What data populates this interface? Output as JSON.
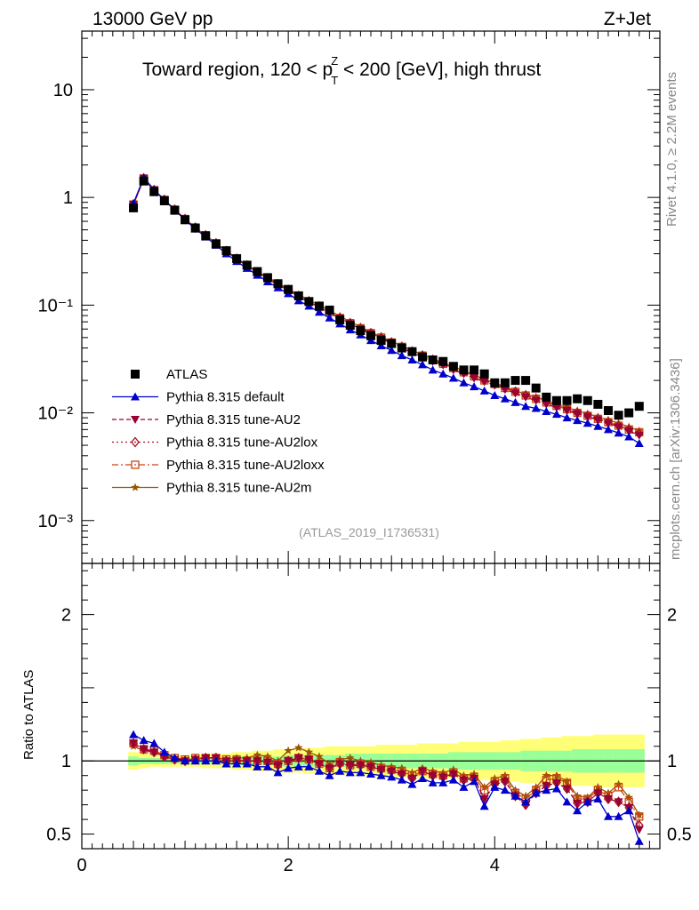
{
  "header": {
    "left": "13000 GeV pp",
    "right": "Z+Jet"
  },
  "title": {
    "prefix": "Toward region, 120 < p",
    "sup": "Z",
    "sub": "T",
    "suffix": " < 200 [GeV], high thrust"
  },
  "side_labels": {
    "rivet": "Rivet 4.1.0, ≥ 2.2M events",
    "mcplots": "mcplots.cern.ch [arXiv:1306.3436]"
  },
  "analysis_tag": "(ATLAS_2019_I1736531)",
  "ratio_ylabel": "Ratio to ATLAS",
  "colors": {
    "ATLAS": "#000000",
    "default": "#0000cc",
    "AU2": "#990033",
    "AU2lox": "#aa1122",
    "AU2loxx": "#cc4411",
    "AU2m": "#995500",
    "band_outer": "#ffff77",
    "band_inner": "#99ff99"
  },
  "chart_data": {
    "type": "line",
    "x": [
      0.5,
      0.6,
      0.7,
      0.8,
      0.9,
      1.0,
      1.1,
      1.2,
      1.3,
      1.4,
      1.5,
      1.6,
      1.7,
      1.8,
      1.9,
      2.0,
      2.1,
      2.2,
      2.3,
      2.4,
      2.5,
      2.6,
      2.7,
      2.8,
      2.9,
      3.0,
      3.1,
      3.2,
      3.3,
      3.4,
      3.5,
      3.6,
      3.7,
      3.8,
      3.9,
      4.0,
      4.1,
      4.2,
      4.3,
      4.4,
      4.5,
      4.6,
      4.7,
      4.8,
      4.9,
      5.0,
      5.1,
      5.2,
      5.3,
      5.4
    ],
    "main_panel": {
      "yscale": "log",
      "ylim": [
        0.0004,
        35
      ],
      "yticks": [
        {
          "value": 10,
          "label": "10"
        },
        {
          "value": 1,
          "label": "1"
        },
        {
          "value": 0.1,
          "label": "10⁻¹"
        },
        {
          "value": 0.01,
          "label": "10⁻²"
        },
        {
          "value": 0.001,
          "label": "10⁻³"
        }
      ],
      "series": [
        {
          "name": "ATLAS",
          "key": "ATLAS",
          "marker": "square",
          "values": [
            0.8,
            1.42,
            1.13,
            0.93,
            0.76,
            0.62,
            0.52,
            0.44,
            0.37,
            0.32,
            0.27,
            0.235,
            0.205,
            0.18,
            0.158,
            0.14,
            0.122,
            0.108,
            0.098,
            0.09,
            0.073,
            0.065,
            0.058,
            0.052,
            0.047,
            0.044,
            0.04,
            0.037,
            0.033,
            0.031,
            0.03,
            0.027,
            0.025,
            0.025,
            0.023,
            0.019,
            0.019,
            0.02,
            0.02,
            0.017,
            0.014,
            0.013,
            0.013,
            0.0135,
            0.013,
            0.012,
            0.0105,
            0.0095,
            0.01,
            0.0115
          ]
        },
        {
          "name": "Pythia 8.315 default",
          "key": "default",
          "marker": "triangle-up",
          "line": "solid",
          "values": [
            0.88,
            1.53,
            1.18,
            0.95,
            0.76,
            0.62,
            0.51,
            0.43,
            0.36,
            0.3,
            0.255,
            0.22,
            0.19,
            0.165,
            0.145,
            0.128,
            0.11,
            0.098,
            0.086,
            0.076,
            0.067,
            0.059,
            0.053,
            0.047,
            0.042,
            0.038,
            0.034,
            0.031,
            0.028,
            0.025,
            0.023,
            0.021,
            0.019,
            0.0175,
            0.016,
            0.0145,
            0.0135,
            0.0125,
            0.0115,
            0.011,
            0.0103,
            0.0097,
            0.009,
            0.0085,
            0.008,
            0.0075,
            0.007,
            0.0065,
            0.006,
            0.0052
          ]
        },
        {
          "name": "Pythia 8.315 tune-AU2",
          "key": "AU2",
          "marker": "triangle-down",
          "line": "dashed",
          "values": [
            0.86,
            1.5,
            1.17,
            0.95,
            0.77,
            0.63,
            0.52,
            0.44,
            0.37,
            0.315,
            0.268,
            0.232,
            0.2,
            0.176,
            0.155,
            0.137,
            0.12,
            0.107,
            0.095,
            0.085,
            0.075,
            0.067,
            0.06,
            0.054,
            0.049,
            0.044,
            0.04,
            0.036,
            0.033,
            0.03,
            0.028,
            0.025,
            0.023,
            0.021,
            0.0195,
            0.018,
            0.0165,
            0.0152,
            0.014,
            0.013,
            0.012,
            0.0112,
            0.0105,
            0.0098,
            0.0092,
            0.0086,
            0.008,
            0.0074,
            0.0068,
            0.0062
          ]
        },
        {
          "name": "Pythia 8.315 tune-AU2lox",
          "key": "AU2lox",
          "marker": "diamond-open",
          "line": "dotted",
          "values": [
            0.86,
            1.5,
            1.17,
            0.95,
            0.77,
            0.63,
            0.525,
            0.445,
            0.375,
            0.318,
            0.27,
            0.234,
            0.202,
            0.178,
            0.156,
            0.138,
            0.121,
            0.108,
            0.096,
            0.086,
            0.076,
            0.068,
            0.061,
            0.055,
            0.05,
            0.045,
            0.041,
            0.037,
            0.034,
            0.031,
            0.0285,
            0.026,
            0.0238,
            0.0218,
            0.02,
            0.0185,
            0.017,
            0.0157,
            0.0145,
            0.0135,
            0.0125,
            0.0116,
            0.0108,
            0.01,
            0.0094,
            0.0088,
            0.0082,
            0.0076,
            0.007,
            0.0064
          ]
        },
        {
          "name": "Pythia 8.315 tune-AU2loxx",
          "key": "AU2loxx",
          "marker": "square-open",
          "line": "dashdot",
          "values": [
            0.86,
            1.5,
            1.17,
            0.95,
            0.77,
            0.63,
            0.525,
            0.445,
            0.375,
            0.318,
            0.27,
            0.234,
            0.202,
            0.178,
            0.156,
            0.138,
            0.121,
            0.108,
            0.096,
            0.086,
            0.076,
            0.068,
            0.061,
            0.055,
            0.05,
            0.045,
            0.041,
            0.037,
            0.034,
            0.031,
            0.0285,
            0.026,
            0.0238,
            0.0218,
            0.02,
            0.0185,
            0.017,
            0.0157,
            0.0145,
            0.0135,
            0.0125,
            0.0116,
            0.0108,
            0.01,
            0.0094,
            0.0088,
            0.0082,
            0.0076,
            0.007,
            0.0066
          ]
        },
        {
          "name": "Pythia 8.315 tune-AU2m",
          "key": "AU2m",
          "marker": "star",
          "line": "solid",
          "values": [
            0.85,
            1.48,
            1.16,
            0.95,
            0.77,
            0.63,
            0.525,
            0.445,
            0.375,
            0.32,
            0.272,
            0.236,
            0.205,
            0.182,
            0.16,
            0.142,
            0.125,
            0.112,
            0.1,
            0.089,
            0.079,
            0.07,
            0.063,
            0.056,
            0.051,
            0.046,
            0.042,
            0.038,
            0.035,
            0.032,
            0.029,
            0.027,
            0.0245,
            0.0225,
            0.0205,
            0.019,
            0.0175,
            0.016,
            0.015,
            0.014,
            0.013,
            0.012,
            0.0112,
            0.0105,
            0.0098,
            0.0092,
            0.0086,
            0.008,
            0.0074,
            0.0068
          ]
        }
      ]
    },
    "ratio_panel": {
      "yscale": "linear",
      "ylim": [
        0.4,
        2.35
      ],
      "yticks": [
        {
          "value": 0.5,
          "label": "0.5"
        },
        {
          "value": 1,
          "label": "1"
        },
        {
          "value": 2,
          "label": "2"
        }
      ],
      "band_outer": [
        0.06,
        0.05,
        0.04,
        0.04,
        0.04,
        0.04,
        0.04,
        0.05,
        0.05,
        0.05,
        0.06,
        0.06,
        0.07,
        0.07,
        0.08,
        0.08,
        0.08,
        0.09,
        0.09,
        0.1,
        0.1,
        0.1,
        0.1,
        0.1,
        0.11,
        0.11,
        0.11,
        0.11,
        0.12,
        0.12,
        0.12,
        0.12,
        0.13,
        0.13,
        0.13,
        0.13,
        0.14,
        0.14,
        0.15,
        0.15,
        0.16,
        0.16,
        0.17,
        0.17,
        0.17,
        0.18,
        0.18,
        0.18,
        0.18,
        0.18
      ],
      "band_inner": [
        0.03,
        0.02,
        0.02,
        0.02,
        0.02,
        0.02,
        0.02,
        0.02,
        0.02,
        0.02,
        0.03,
        0.03,
        0.03,
        0.03,
        0.03,
        0.04,
        0.04,
        0.04,
        0.04,
        0.04,
        0.04,
        0.05,
        0.05,
        0.05,
        0.05,
        0.05,
        0.05,
        0.05,
        0.05,
        0.05,
        0.05,
        0.06,
        0.06,
        0.06,
        0.06,
        0.06,
        0.06,
        0.06,
        0.07,
        0.07,
        0.07,
        0.07,
        0.07,
        0.08,
        0.08,
        0.08,
        0.08,
        0.08,
        0.08,
        0.08
      ],
      "series": [
        {
          "key": "default",
          "values": [
            1.18,
            1.14,
            1.12,
            1.06,
            1.02,
            1.0,
            1.0,
            1.0,
            1.0,
            0.98,
            0.98,
            0.98,
            0.96,
            0.96,
            0.92,
            0.95,
            0.96,
            0.96,
            0.93,
            0.9,
            0.93,
            0.92,
            0.92,
            0.91,
            0.9,
            0.89,
            0.87,
            0.84,
            0.88,
            0.85,
            0.85,
            0.87,
            0.82,
            0.86,
            0.69,
            0.82,
            0.8,
            0.76,
            0.72,
            0.78,
            0.8,
            0.81,
            0.72,
            0.66,
            0.72,
            0.74,
            0.62,
            0.62,
            0.66,
            0.45
          ]
        },
        {
          "key": "AU2",
          "values": [
            1.12,
            1.08,
            1.06,
            1.03,
            1.01,
            1.0,
            1.01,
            1.02,
            1.02,
            1.0,
            1.0,
            1.0,
            1.0,
            0.99,
            0.97,
            1.0,
            1.02,
            1.01,
            0.98,
            0.95,
            0.98,
            0.97,
            0.97,
            0.96,
            0.94,
            0.93,
            0.91,
            0.88,
            0.93,
            0.9,
            0.89,
            0.91,
            0.87,
            0.88,
            0.74,
            0.84,
            0.86,
            0.76,
            0.7,
            0.78,
            0.83,
            0.85,
            0.81,
            0.71,
            0.72,
            0.78,
            0.74,
            0.72,
            0.68,
            0.53
          ]
        },
        {
          "key": "AU2lox",
          "values": [
            1.12,
            1.08,
            1.06,
            1.03,
            1.01,
            1.0,
            1.01,
            1.02,
            1.02,
            1.0,
            1.0,
            1.0,
            1.0,
            0.99,
            0.97,
            1.0,
            1.02,
            1.01,
            0.98,
            0.95,
            0.98,
            0.97,
            0.97,
            0.96,
            0.94,
            0.93,
            0.91,
            0.88,
            0.93,
            0.9,
            0.89,
            0.91,
            0.87,
            0.88,
            0.74,
            0.84,
            0.86,
            0.76,
            0.7,
            0.78,
            0.83,
            0.85,
            0.81,
            0.71,
            0.72,
            0.78,
            0.74,
            0.72,
            0.68,
            0.56
          ]
        },
        {
          "key": "AU2loxx",
          "values": [
            1.12,
            1.08,
            1.07,
            1.04,
            1.02,
            1.01,
            1.02,
            1.02,
            1.02,
            1.01,
            1.01,
            1.0,
            1.0,
            1.0,
            0.98,
            1.0,
            1.02,
            1.01,
            0.98,
            0.95,
            0.99,
            0.97,
            0.98,
            0.96,
            0.95,
            0.94,
            0.93,
            0.9,
            0.93,
            0.91,
            0.9,
            0.92,
            0.88,
            0.89,
            0.8,
            0.86,
            0.88,
            0.78,
            0.74,
            0.8,
            0.87,
            0.88,
            0.85,
            0.74,
            0.74,
            0.8,
            0.76,
            0.82,
            0.72,
            0.62
          ]
        },
        {
          "key": "AU2m",
          "values": [
            1.1,
            1.07,
            1.06,
            1.04,
            1.02,
            1.01,
            1.01,
            1.02,
            1.02,
            1.01,
            1.02,
            1.02,
            1.04,
            1.03,
            1.0,
            1.07,
            1.09,
            1.06,
            1.03,
            0.98,
            1.01,
            1.02,
            1.0,
            0.99,
            0.97,
            0.96,
            0.95,
            0.92,
            0.95,
            0.93,
            0.92,
            0.94,
            0.9,
            0.91,
            0.82,
            0.88,
            0.9,
            0.8,
            0.76,
            0.82,
            0.9,
            0.9,
            0.86,
            0.76,
            0.75,
            0.82,
            0.78,
            0.84,
            0.75,
            0.63
          ]
        }
      ]
    },
    "xlim": [
      0,
      5.6
    ],
    "xticks": [
      {
        "value": 0,
        "label": "0"
      },
      {
        "value": 2,
        "label": "2"
      },
      {
        "value": 4,
        "label": "4"
      }
    ],
    "legend_position": "lower-left"
  }
}
